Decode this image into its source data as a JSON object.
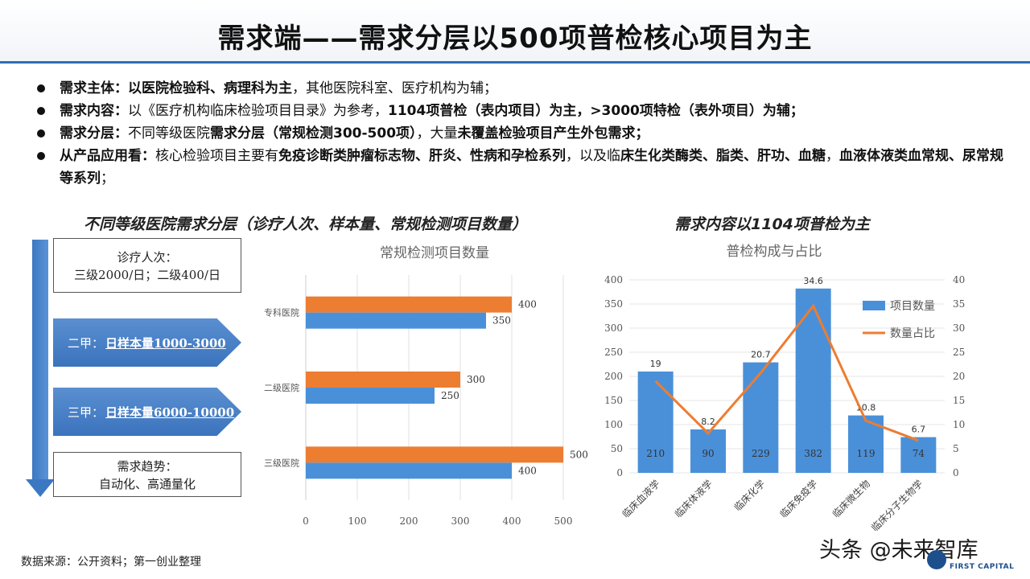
{
  "title": "需求端——需求分层以500项普检核心项目为主",
  "bullets": [
    {
      "parts": [
        {
          "text": "需求主体：以医院检验科、病理科为主",
          "bold": true
        },
        {
          "text": "，其他医院科室、医疗机构为辅；",
          "bold": false
        }
      ]
    },
    {
      "parts": [
        {
          "text": "需求内容：",
          "bold": true
        },
        {
          "text": "以《医疗机构临床检验项目目录》为参考，",
          "bold": false
        },
        {
          "text": "1104项普检（表内项目）为主，>3000项特检（表外项目）为辅；",
          "bold": true
        }
      ]
    },
    {
      "parts": [
        {
          "text": "需求分层：",
          "bold": true
        },
        {
          "text": "不同等级医院",
          "bold": false
        },
        {
          "text": "需求分层（常规检测300-500项）",
          "bold": true
        },
        {
          "text": "，大量",
          "bold": false
        },
        {
          "text": "未覆盖检验项目产生外包需求；",
          "bold": true
        }
      ]
    },
    {
      "parts": [
        {
          "text": "从产品应用看：",
          "bold": true
        },
        {
          "text": "核心检验项目主要有",
          "bold": false
        },
        {
          "text": "免疫诊断类肿瘤标志物、肝炎、性病和孕检系列",
          "bold": true
        },
        {
          "text": "，以及临",
          "bold": false
        },
        {
          "text": "床生化类酶类、脂类、肝功、血糖",
          "bold": true
        },
        {
          "text": "，",
          "bold": false
        },
        {
          "text": "血液体液类血常规、尿常规等系列",
          "bold": true
        },
        {
          "text": "；",
          "bold": false
        }
      ]
    }
  ],
  "left_section_title": "不同等级医院需求分层（诊疗人次、样本量、常规检测项目数量）",
  "right_section_title": "需求内容以1104项普检为主",
  "left_panel": {
    "visits_line1": "诊疗人次：",
    "visits_line2": "三级2000/日；二级400/日",
    "er_jia_label": "二甲：",
    "er_jia_value": "日样本量1000-3000",
    "san_jia_label": "三甲：",
    "san_jia_value": "日样本量6000-10000",
    "trend_line1": "需求趋势：",
    "trend_line2": "自动化、高通量化"
  },
  "chart_data": [
    {
      "type": "bar",
      "orientation": "horizontal",
      "title": "常规检测项目数量",
      "categories": [
        "专科医院",
        "二级医院",
        "三级医院"
      ],
      "series": [
        {
          "values": [
            400,
            300,
            500
          ],
          "color": "#ed7d31"
        },
        {
          "values": [
            350,
            250,
            400
          ],
          "color": "#4a90d9"
        }
      ],
      "xlim": [
        0,
        500
      ],
      "xticks": [
        0,
        100,
        200,
        300,
        400,
        500
      ],
      "grid": true
    },
    {
      "type": "bar",
      "title": "普检构成与占比",
      "categories": [
        "临床血液学",
        "临床体液学",
        "临床化学",
        "临床免疫学",
        "临床微生物",
        "临床分子生物学"
      ],
      "series": [
        {
          "name": "项目数量",
          "type": "bar",
          "axis": "left",
          "values": [
            210,
            90,
            229,
            382,
            119,
            74
          ],
          "color": "#4a90d9"
        },
        {
          "name": "数量占比",
          "type": "line",
          "axis": "right",
          "values": [
            19,
            8.2,
            20.7,
            34.6,
            10.8,
            6.7
          ],
          "color": "#ed7d31"
        }
      ],
      "ylim_left": [
        0,
        400
      ],
      "ylim_right": [
        0,
        40
      ],
      "yticks_left": [
        0,
        50,
        100,
        150,
        200,
        250,
        300,
        350,
        400
      ],
      "yticks_right": [
        0,
        5,
        10,
        15,
        20,
        25,
        30,
        35,
        40
      ],
      "legend": "right"
    }
  ],
  "source": "数据来源：公开资料；第一创业整理",
  "watermark": "头条 @未来智库",
  "logo_text": "FIRST CAPITAL"
}
